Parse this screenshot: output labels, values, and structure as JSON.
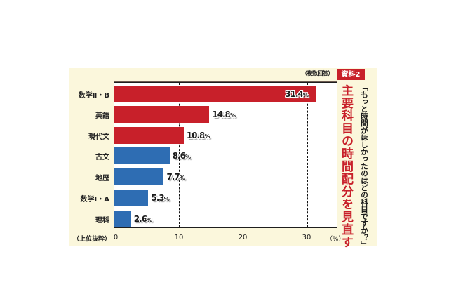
{
  "header": {
    "badge": "資料2",
    "title": "主要科目の時間配分を見直す",
    "subtitle": "「もっと時間がほしかったのはどの科目ですか？」",
    "note": "（複数回答）"
  },
  "axis": {
    "x_note": "（上位抜粋）",
    "ticks": [
      "0",
      "10",
      "20",
      "30"
    ],
    "unit": "（%）"
  },
  "colors": {
    "red": "#c8202a",
    "blue": "#2e6db3",
    "panel": "#fbf7dc"
  },
  "chart_data": {
    "type": "bar",
    "orientation": "horizontal",
    "title": "主要科目の時間配分を見直す",
    "subtitle": "「もっと時間がほしかったのはどの科目ですか？」",
    "note": "（複数回答）",
    "xlabel": "（%）",
    "ylabel": "（上位抜粋）",
    "xlim": [
      0,
      35
    ],
    "xticks": [
      0,
      10,
      20,
      30
    ],
    "grid": "vertical dashed at 10, 20, 30",
    "categories": [
      "数学Ⅱ・B",
      "英語",
      "現代文",
      "古文",
      "地歴",
      "数学Ⅰ・A",
      "理科"
    ],
    "values": [
      31.4,
      14.8,
      10.8,
      8.6,
      7.7,
      5.3,
      2.6
    ],
    "value_labels": [
      "31.4%",
      "14.8%",
      "10.8%",
      "8.6%",
      "7.7%",
      "5.3%",
      "2.6%"
    ],
    "bar_colors": [
      "#c8202a",
      "#c8202a",
      "#c8202a",
      "#2e6db3",
      "#2e6db3",
      "#2e6db3",
      "#2e6db3"
    ]
  },
  "bars": [
    {
      "label": "数学Ⅱ・B",
      "value": "31.4",
      "pct": "%"
    },
    {
      "label": "英語",
      "value": "14.8",
      "pct": "%"
    },
    {
      "label": "現代文",
      "value": "10.8",
      "pct": "%"
    },
    {
      "label": "古文",
      "value": "8.6",
      "pct": "%"
    },
    {
      "label": "地歴",
      "value": "7.7",
      "pct": "%"
    },
    {
      "label": "数学Ⅰ・A",
      "value": "5.3",
      "pct": "%"
    },
    {
      "label": "理科",
      "value": "2.6",
      "pct": "%"
    }
  ]
}
